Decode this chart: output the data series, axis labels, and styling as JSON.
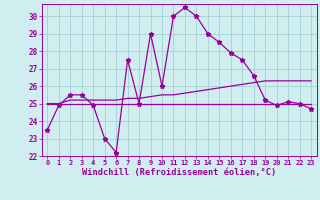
{
  "xlabel": "Windchill (Refroidissement éolien,°C)",
  "background_color": "#d0eef0",
  "grid_color": "#aad4d8",
  "line_color": "#990099",
  "x_hours": [
    0,
    1,
    2,
    3,
    4,
    5,
    6,
    7,
    8,
    9,
    10,
    11,
    12,
    13,
    14,
    15,
    16,
    17,
    18,
    19,
    20,
    21,
    22,
    23
  ],
  "windchill": [
    23.5,
    24.9,
    25.5,
    25.5,
    24.9,
    23.0,
    22.2,
    27.5,
    25.0,
    29.0,
    26.0,
    30.0,
    30.5,
    30.0,
    29.0,
    28.5,
    27.9,
    27.5,
    26.6,
    25.2,
    24.9,
    25.1,
    25.0,
    24.7
  ],
  "temp_avg": [
    25.0,
    25.0,
    25.2,
    25.2,
    25.2,
    25.2,
    25.2,
    25.3,
    25.3,
    25.4,
    25.5,
    25.5,
    25.6,
    25.7,
    25.8,
    25.9,
    26.0,
    26.1,
    26.2,
    26.3,
    26.3,
    26.3,
    26.3,
    26.3
  ],
  "temp_flat": [
    25.0,
    25.0,
    25.0,
    25.0,
    25.0,
    25.0,
    25.0,
    25.0,
    25.0,
    25.0,
    25.0,
    25.0,
    25.0,
    25.0,
    25.0,
    25.0,
    25.0,
    25.0,
    25.0,
    25.0,
    25.0,
    25.0,
    25.0,
    25.0
  ],
  "ylim": [
    22,
    30.7
  ],
  "yticks": [
    22,
    23,
    24,
    25,
    26,
    27,
    28,
    29,
    30
  ],
  "xtick_labels": [
    "0",
    "1",
    "2",
    "3",
    "4",
    "5",
    "6",
    "7",
    "8",
    "9",
    "10",
    "11",
    "12",
    "13",
    "14",
    "15",
    "16",
    "17",
    "18",
    "19",
    "20",
    "21",
    "22",
    "23"
  ]
}
